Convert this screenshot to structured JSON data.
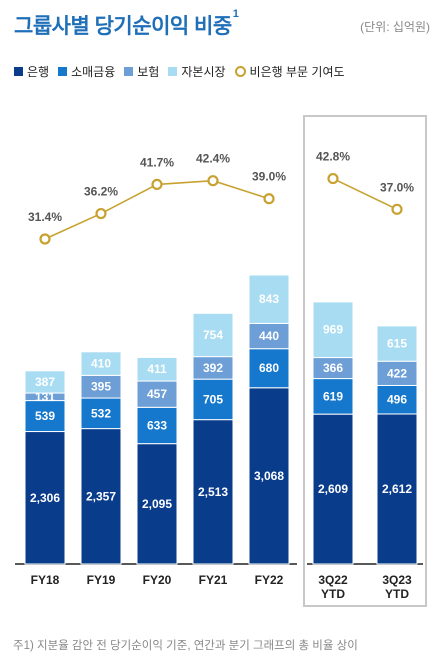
{
  "header": {
    "title": "그룹사별 당기순이익 비중",
    "title_sup": "1",
    "unit": "(단위: 십억원)"
  },
  "footnote": "주1) 지분율 감안 전 당기순이익 기준, 연간과 분기 그래프의 총 비율 상이",
  "chart_data": {
    "type": "bar",
    "stacked": true,
    "categories": [
      "FY18",
      "FY19",
      "FY20",
      "FY21",
      "FY22",
      "3Q22\nYTD",
      "3Q23\nYTD"
    ],
    "series": [
      {
        "name": "은행",
        "color": "#0a3c8c",
        "values": [
          2306,
          2357,
          2095,
          2513,
          3068,
          2609,
          2612
        ]
      },
      {
        "name": "소매금융",
        "color": "#1578cc",
        "values": [
          539,
          532,
          633,
          705,
          680,
          619,
          496
        ]
      },
      {
        "name": "보험",
        "color": "#6d9fd6",
        "values": [
          131,
          395,
          457,
          392,
          440,
          366,
          422
        ]
      },
      {
        "name": "자본시장",
        "color": "#a8dcf2",
        "values": [
          387,
          410,
          411,
          754,
          843,
          969,
          615
        ]
      }
    ],
    "line_series": {
      "name": "비은행 부문 기여도",
      "color": "#c7a230",
      "values": [
        31.4,
        36.2,
        41.7,
        42.4,
        39.0,
        42.8,
        37.0
      ],
      "labels": [
        "31.4%",
        "36.2%",
        "41.7%",
        "42.4%",
        "39.0%",
        "42.8%",
        "37.0%"
      ]
    },
    "value_labels": [
      [
        "2,306",
        "539",
        "131",
        "387"
      ],
      [
        "2,357",
        "532",
        "395",
        "410"
      ],
      [
        "2,095",
        "633",
        "457",
        "411"
      ],
      [
        "2,513",
        "705",
        "392",
        "754"
      ],
      [
        "3,068",
        "680",
        "440",
        "843"
      ],
      [
        "2,609",
        "619",
        "366",
        "969"
      ],
      [
        "2,612",
        "496",
        "422",
        "615"
      ]
    ],
    "highlight_group": [
      "3Q22\nYTD",
      "3Q23\nYTD"
    ]
  }
}
